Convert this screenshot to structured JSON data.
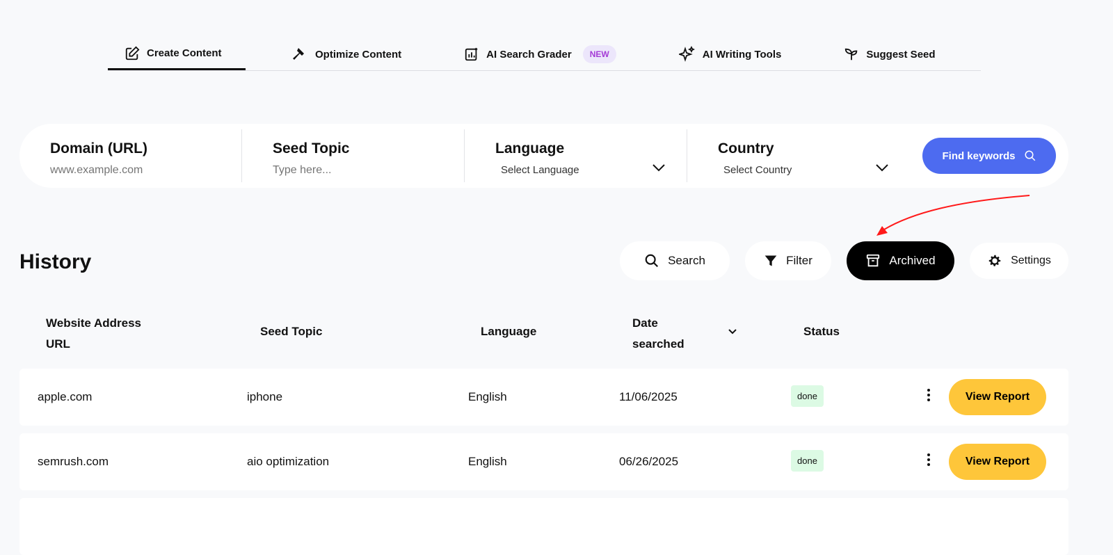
{
  "nav": {
    "tabs": [
      {
        "label": "Create Content",
        "icon": "edit-icon"
      },
      {
        "label": "Optimize Content",
        "icon": "hammer-icon"
      },
      {
        "label": "AI Search Grader",
        "icon": "chart-icon",
        "badge": "NEW"
      },
      {
        "label": "AI Writing Tools",
        "icon": "sparkles-icon"
      },
      {
        "label": "Suggest Seed",
        "icon": "sprout-icon"
      }
    ]
  },
  "form": {
    "domain_label": "Domain (URL)",
    "domain_placeholder": "www.example.com",
    "seed_label": "Seed Topic",
    "seed_placeholder": "Type here...",
    "language_label": "Language",
    "language_value": "Select Language",
    "country_label": "Country",
    "country_value": "Select Country",
    "find_label": "Find keywords"
  },
  "history": {
    "title": "History",
    "search": "Search",
    "filter": "Filter",
    "archived": "Archived",
    "settings": "Settings"
  },
  "table": {
    "headers": [
      "Website Address URL",
      "Seed Topic",
      "Language",
      "Date searched",
      "Status"
    ],
    "rows": [
      {
        "url": "apple.com",
        "seed": "iphone",
        "language": "English",
        "date": "11/06/2025",
        "status": "done",
        "action": "View Report"
      },
      {
        "url": "semrush.com",
        "seed": "aio optimization",
        "language": "English",
        "date": "06/26/2025",
        "status": "done",
        "action": "View Report"
      }
    ]
  },
  "colors": {
    "accent": "#4d6bf0",
    "report": "#fec63a",
    "done_bg": "#dcfae4",
    "annotation": "#ff1a1a"
  }
}
